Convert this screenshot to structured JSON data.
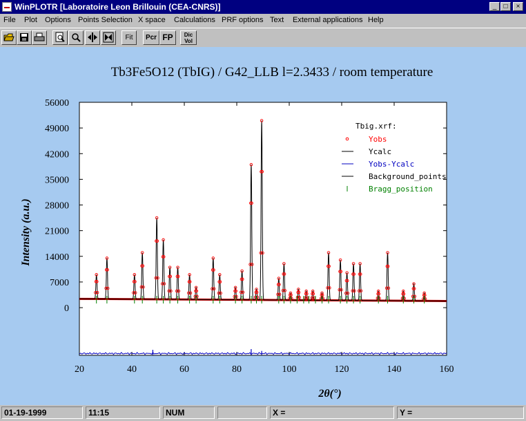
{
  "window": {
    "title": "WinPLOTR [Laboratoire Leon Brillouin (CEA-CNRS)]",
    "controls": [
      "_",
      "□",
      "×"
    ]
  },
  "menu": [
    "File",
    "Plot",
    "Options",
    "Points Selection",
    "X space",
    "Calculations",
    "PRF options",
    "Text",
    "External applications",
    "Help"
  ],
  "toolbar": {
    "buttons": [
      {
        "name": "open-icon",
        "label": ""
      },
      {
        "name": "save-icon",
        "label": ""
      },
      {
        "name": "print-icon",
        "label": ""
      },
      {
        "name": "zoom-page-icon",
        "label": ""
      },
      {
        "name": "zoom-icon",
        "label": ""
      },
      {
        "name": "move-horizontal-icon",
        "label": ""
      },
      {
        "name": "move-vertical-icon",
        "label": ""
      },
      {
        "name": "fit-button",
        "label": "Fit"
      },
      {
        "name": "pcr-button",
        "label": "Pcr"
      },
      {
        "name": "fp-button",
        "label": "FP"
      },
      {
        "name": "dicvol-button",
        "label": "Dic Vol"
      }
    ]
  },
  "chart_data": {
    "type": "line",
    "title": "Tb3Fe5O12 (TbIG) / G42_LLB l=2.3433 / room temperature",
    "xlabel": "2θ(°)",
    "ylabel": "Intensity (a.u.)",
    "xlim": [
      20,
      160
    ],
    "ylim": [
      -13000,
      56000
    ],
    "x_ticks": [
      20,
      40,
      60,
      80,
      100,
      120,
      140,
      160
    ],
    "y_ticks": [
      0,
      7000,
      14000,
      21000,
      28000,
      35000,
      42000,
      49000,
      56000
    ],
    "legend_title": "Tbig.xrf:",
    "legend": [
      {
        "name": "Yobs",
        "color": "#ff0000",
        "marker": "circle"
      },
      {
        "name": "Ycalc",
        "color": "#000000",
        "marker": "line"
      },
      {
        "name": "Yobs-Ycalc",
        "color": "#0000c0",
        "marker": "line"
      },
      {
        "name": "Background_points",
        "color": "#000000",
        "marker": "line"
      },
      {
        "name": "Bragg_position",
        "color": "#008000",
        "marker": "tick"
      }
    ],
    "background": {
      "x": [
        20,
        160
      ],
      "y": [
        2400,
        1800
      ]
    },
    "peaks": [
      {
        "x": 26.5,
        "y": 9000
      },
      {
        "x": 30.5,
        "y": 13500
      },
      {
        "x": 41.0,
        "y": 9000
      },
      {
        "x": 44.0,
        "y": 15000
      },
      {
        "x": 49.5,
        "y": 24500
      },
      {
        "x": 52.0,
        "y": 18500
      },
      {
        "x": 54.5,
        "y": 11000
      },
      {
        "x": 57.5,
        "y": 11000
      },
      {
        "x": 62.0,
        "y": 9000
      },
      {
        "x": 64.5,
        "y": 5500
      },
      {
        "x": 71.0,
        "y": 13500
      },
      {
        "x": 73.5,
        "y": 9000
      },
      {
        "x": 79.5,
        "y": 5500
      },
      {
        "x": 82.0,
        "y": 10000
      },
      {
        "x": 85.5,
        "y": 39000
      },
      {
        "x": 87.5,
        "y": 5000
      },
      {
        "x": 89.5,
        "y": 51000
      },
      {
        "x": 96.0,
        "y": 8000
      },
      {
        "x": 98.0,
        "y": 12000
      },
      {
        "x": 100.5,
        "y": 4000
      },
      {
        "x": 103.5,
        "y": 5000
      },
      {
        "x": 106.5,
        "y": 4500
      },
      {
        "x": 109.0,
        "y": 4500
      },
      {
        "x": 112.5,
        "y": 4000
      },
      {
        "x": 115.0,
        "y": 15000
      },
      {
        "x": 119.5,
        "y": 13000
      },
      {
        "x": 122.0,
        "y": 9500
      },
      {
        "x": 124.5,
        "y": 12000
      },
      {
        "x": 127.0,
        "y": 12000
      },
      {
        "x": 134.0,
        "y": 4500
      },
      {
        "x": 137.5,
        "y": 15000
      },
      {
        "x": 143.5,
        "y": 4500
      },
      {
        "x": 147.5,
        "y": 6500
      },
      {
        "x": 151.5,
        "y": 4000
      }
    ],
    "bragg_positions": [
      26.5,
      30.5,
      41.0,
      44.0,
      49.5,
      52.0,
      54.5,
      57.5,
      62.0,
      64.5,
      71.0,
      73.5,
      79.5,
      82.0,
      85.5,
      87.5,
      89.5,
      96.0,
      98.0,
      100.5,
      103.0,
      105.5,
      107.5,
      110.0,
      112.5,
      115.0,
      119.5,
      122.0,
      124.5,
      127.0,
      134.0,
      137.5,
      143.5,
      147.5,
      151.5
    ],
    "difference": {
      "baseline": -12500,
      "spikes": [
        {
          "x": 48.0,
          "y": -11500
        },
        {
          "x": 85.5,
          "y": -11300
        },
        {
          "x": 89.5,
          "y": -11800
        }
      ]
    }
  },
  "status": {
    "date": "01-19-1999",
    "time": "11:15",
    "numlock": "NUM",
    "x_readout": "X =",
    "y_readout": "Y ="
  }
}
